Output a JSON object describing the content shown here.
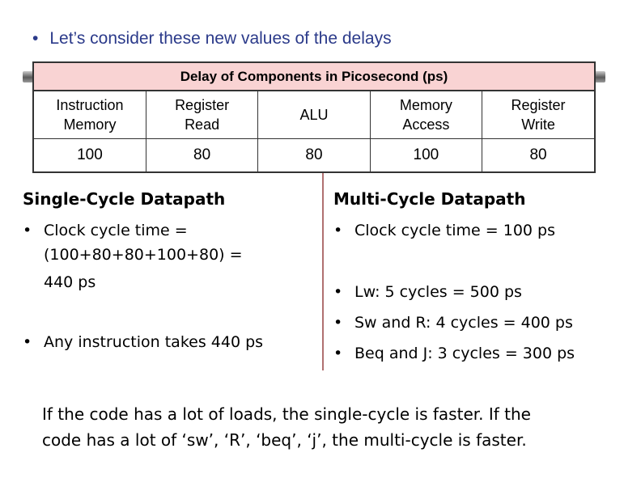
{
  "top_bullet": "Let’s consider these new values of the delays",
  "table": {
    "header": "Delay of Components in Picosecond (ps)",
    "columns": [
      {
        "name_line1": "Instruction",
        "name_line2": "Memory",
        "value": "100"
      },
      {
        "name_line1": "Register",
        "name_line2": "Read",
        "value": "80"
      },
      {
        "name_line1": "ALU",
        "name_line2": "",
        "value": "80"
      },
      {
        "name_line1": "Memory",
        "name_line2": "Access",
        "value": "100"
      },
      {
        "name_line1": "Register",
        "name_line2": "Write",
        "value": "80"
      }
    ]
  },
  "single_cycle": {
    "heading": "Single-Cycle Datapath",
    "bullet1_line1": "Clock cycle time =",
    "bullet1_line2": "(100+80+80+100+80) =",
    "bullet1_line3": "440 ps",
    "bullet2": "Any instruction takes 440 ps"
  },
  "multi_cycle": {
    "heading": "Multi-Cycle Datapath",
    "bullet1": "Clock cycle time = 100 ps",
    "bullet2": "Lw: 5 cycles = 500 ps",
    "bullet3": "Sw and R: 4 cycles = 400 ps",
    "bullet4": "Beq and J: 3 cycles = 300 ps"
  },
  "conclusion_line1": "If the code has a lot of loads, the single-cycle is faster. If the",
  "conclusion_line2": "code has a lot of ‘sw’, ‘R’, ‘beq’, ‘j’, the multi-cycle is faster."
}
